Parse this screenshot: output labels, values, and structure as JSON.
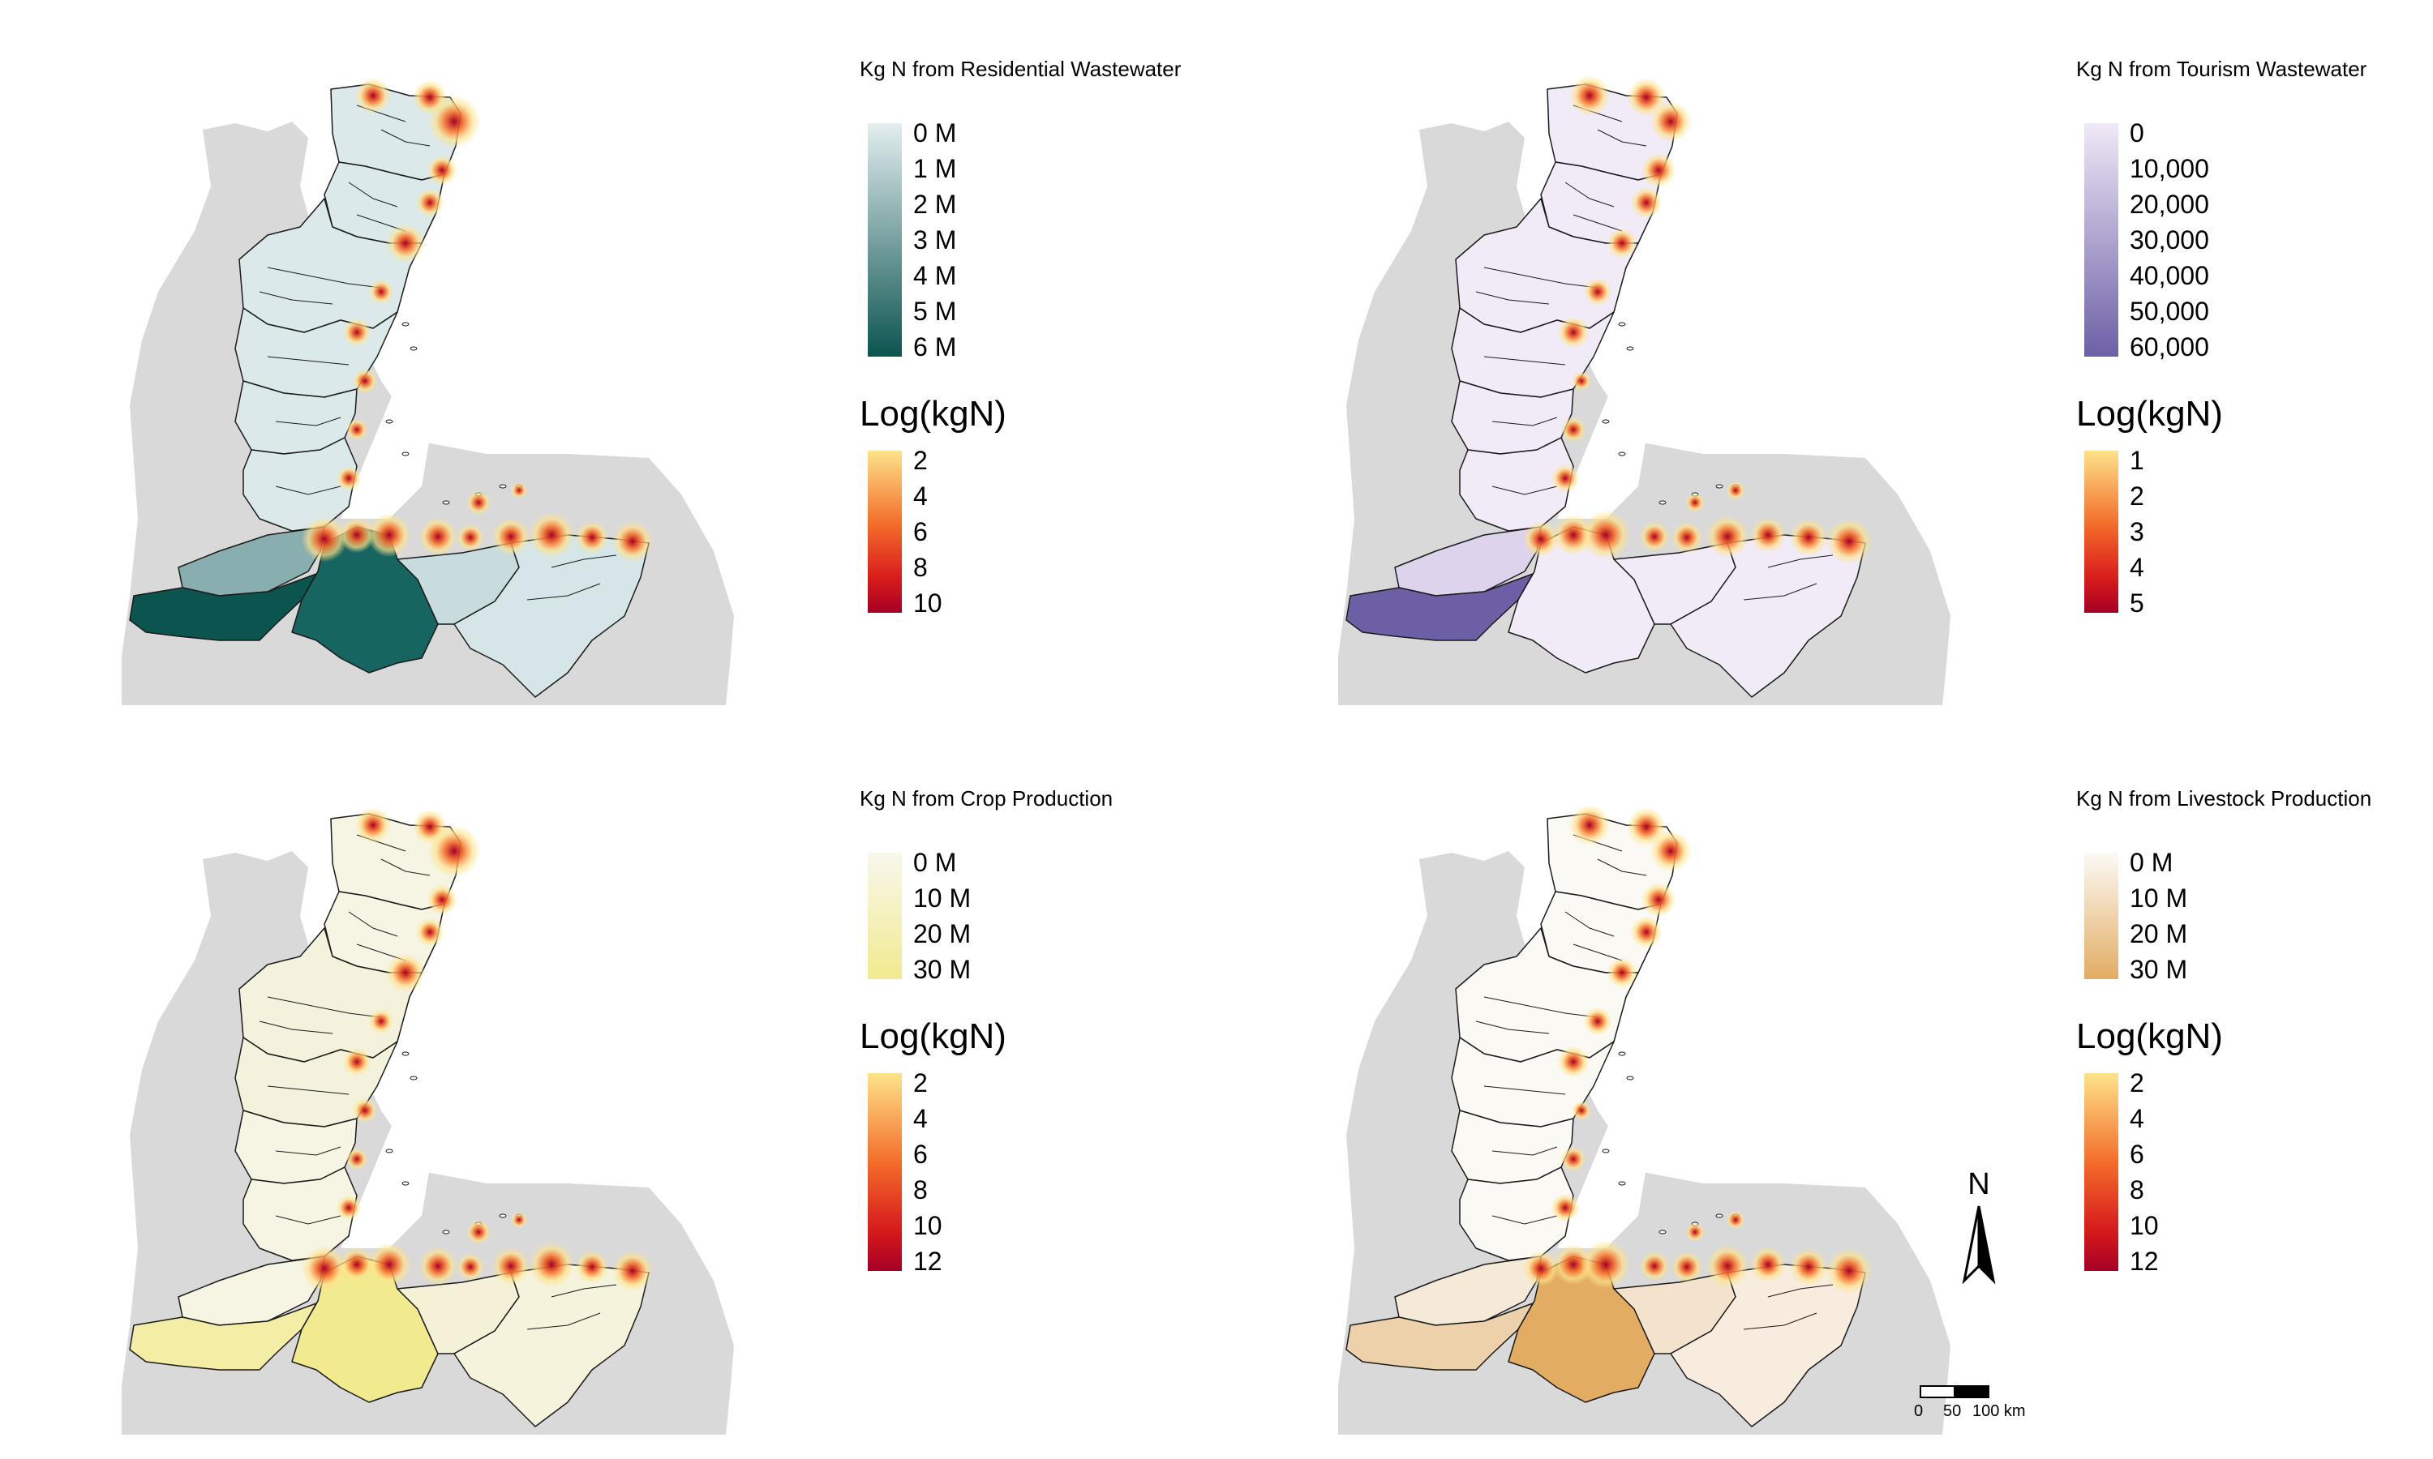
{
  "panels": [
    {
      "id": "residential",
      "legend_title": "Kg N from Residential Wastewater",
      "fill_ticks": [
        "0 M",
        "1 M",
        "2 M",
        "3 M",
        "4 M",
        "5 M",
        "6 M"
      ],
      "fill_colors": [
        "#e4eef0",
        "#0b5450"
      ],
      "basin_fills": [
        "#dce9eb",
        "#dce9eb",
        "#dce9eb",
        "#dce9eb",
        "#dce9eb",
        "#dce9eb",
        "#88aeaf",
        "#0b5450",
        "#176560",
        "#c8dcde",
        "#d6e6e8"
      ],
      "log_title": "Log(kgN)",
      "log_ticks": [
        "2",
        "4",
        "6",
        "8",
        "10"
      ]
    },
    {
      "id": "tourism",
      "legend_title": "Kg N from Tourism Wastewater",
      "fill_ticks": [
        "0",
        "10,000",
        "20,000",
        "30,000",
        "40,000",
        "50,000",
        "60,000"
      ],
      "fill_colors": [
        "#efe9f7",
        "#6d5fa6"
      ],
      "basin_fills": [
        "#f1ebf8",
        "#f1ebf8",
        "#f1ebf8",
        "#f1ebf8",
        "#f1ebf8",
        "#f1ebf8",
        "#ddd3ec",
        "#6d5fa6",
        "#f1ebf8",
        "#f1ebf8",
        "#f1ebf8"
      ],
      "log_title": "Log(kgN)",
      "log_ticks": [
        "1",
        "2",
        "3",
        "4",
        "5"
      ]
    },
    {
      "id": "crop",
      "legend_title": "Kg N from Crop Production",
      "fill_ticks": [
        "0 M",
        "10 M",
        "20 M",
        "30 M"
      ],
      "fill_colors": [
        "#f8f7ec",
        "#f1ea8f"
      ],
      "basin_fills": [
        "#f6f5e4",
        "#f6f5e4",
        "#f4f2dc",
        "#f4f2dc",
        "#f6f5e4",
        "#f6f5e4",
        "#f6f4e2",
        "#f4eda6",
        "#f1ea8f",
        "#f4f1d6",
        "#f5f3dc"
      ],
      "log_title": "Log(kgN)",
      "log_ticks": [
        "2",
        "4",
        "6",
        "8",
        "10",
        "12"
      ]
    },
    {
      "id": "livestock",
      "legend_title": "Kg N from Livestock Production",
      "fill_ticks": [
        "0 M",
        "10 M",
        "20 M",
        "30 M"
      ],
      "fill_colors": [
        "#fbfaf6",
        "#e2ac63"
      ],
      "basin_fills": [
        "#fbf9f3",
        "#fbf9f3",
        "#fbf9f3",
        "#fbf9f3",
        "#fbf9f3",
        "#fbf9f3",
        "#f5e9d8",
        "#ecd1ab",
        "#e2ac63",
        "#f3e3cc",
        "#f7ecdd"
      ],
      "log_title": "Log(kgN)",
      "log_ticks": [
        "2",
        "4",
        "6",
        "8",
        "10",
        "12"
      ]
    }
  ],
  "compass": {
    "label": "N"
  },
  "scalebar": {
    "labels": [
      "0",
      "50",
      "100 km"
    ]
  },
  "colors": {
    "land_gray": "#d9d9d9",
    "border": "#1a1a1a",
    "heat_low": "#fde38b",
    "heat_mid": "#f46d2a",
    "heat_high": "#a50026"
  }
}
